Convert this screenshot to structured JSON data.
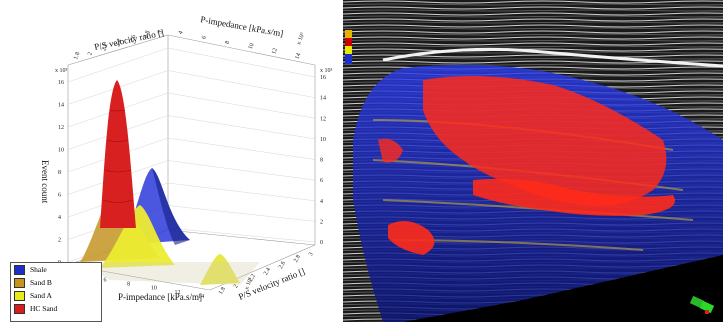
{
  "left_plot": {
    "axis_top_vp": "P/S velocity ratio []",
    "axis_top_ip": "P-impedance [kPa.s/m]",
    "axis_bottom_ip": "P-impedance [kPa.s/m]",
    "axis_bottom_vp": "P/S velocity ratio []",
    "axis_z_left": "Event count",
    "exp_top_left": "x 10³",
    "exp_top_right": "x 10³",
    "exp_right": "x 10³",
    "exp_bottom": "x 10³",
    "z_ticks": [
      "0",
      "2",
      "4",
      "6",
      "8",
      "10",
      "12",
      "14",
      "16"
    ],
    "bottom_ip_ticks": [
      "4",
      "6",
      "8",
      "10",
      "12",
      "14"
    ],
    "bottom_vp_ticks": [
      "1.8",
      "2",
      "2.2",
      "2.4",
      "2.6",
      "2.8",
      "3"
    ],
    "top_vp_ticks": [
      "1.8",
      "2",
      "2.2",
      "2.4",
      "2.6",
      "2.8",
      "3"
    ],
    "top_ip_ticks": [
      "4",
      "6",
      "8",
      "10",
      "12",
      "14"
    ]
  },
  "legend": [
    {
      "label": "Shale",
      "color": "#1c2fc8"
    },
    {
      "label": "Sand B",
      "color": "#c8921c"
    },
    {
      "label": "Sand A",
      "color": "#e8e81c"
    },
    {
      "label": "HC Sand",
      "color": "#d81c1c"
    }
  ],
  "colorbar": {
    "colors": [
      "#e8b000",
      "#c80000",
      "#e8e800",
      "#1c2fc8"
    ]
  }
}
